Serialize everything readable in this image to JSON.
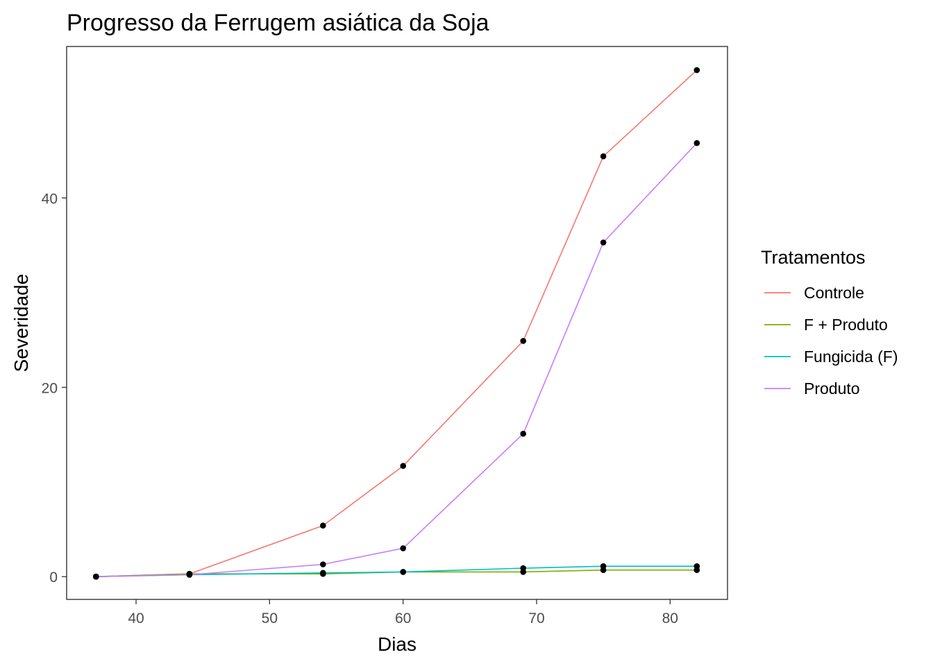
{
  "chart_data": {
    "type": "line",
    "title": "Progresso da Ferrugem asiática da Soja",
    "xlabel": "Dias",
    "ylabel": "Severidade",
    "xlim": [
      34.8,
      84.3
    ],
    "ylim": [
      -2.4,
      56.0
    ],
    "xticks": [
      40,
      50,
      60,
      70,
      80
    ],
    "yticks": [
      0,
      20,
      40
    ],
    "grid": false,
    "legend": {
      "title": "Tratamentos",
      "position": "right"
    },
    "x": [
      37,
      44,
      54,
      60,
      69,
      75,
      82
    ],
    "series": [
      {
        "name": "Controle",
        "color": "#F8766D",
        "values": [
          0.0,
          0.3,
          5.4,
          11.7,
          24.9,
          44.4,
          53.5
        ]
      },
      {
        "name": "F + Produto",
        "color": "#7CAE00",
        "values": [
          0.0,
          0.3,
          0.3,
          0.5,
          0.5,
          0.7,
          0.7
        ]
      },
      {
        "name": "Fungicida (F)",
        "color": "#00BFC4",
        "values": [
          0.0,
          0.2,
          0.4,
          0.5,
          0.9,
          1.1,
          1.1
        ]
      },
      {
        "name": "Produto",
        "color": "#C77CFF",
        "values": [
          0.0,
          0.2,
          1.3,
          3.0,
          15.1,
          35.3,
          45.8
        ]
      }
    ]
  }
}
